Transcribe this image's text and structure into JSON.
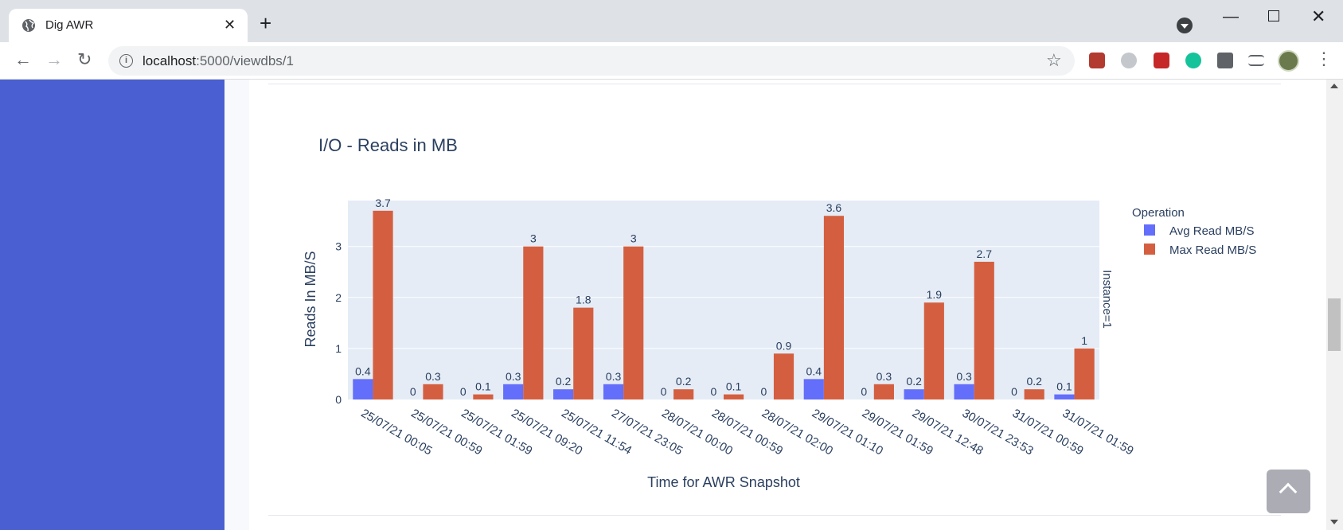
{
  "browser": {
    "tab_title": "Dig AWR",
    "tab_close": "✕",
    "new_tab": "+",
    "url_host": "localhost",
    "url_rest": ":5000/viewdbs/1",
    "back": "←",
    "forward": "→",
    "reload": "↻",
    "star": "☆",
    "minimize": "—",
    "close": "✕",
    "menu": "⋮"
  },
  "icons": {
    "favicon": "globe-icon",
    "info": "info-icon",
    "star": "star-icon",
    "back_to_top": "chevron-up-icon"
  },
  "colors": {
    "sidebar": "#4a5fd2",
    "avg_series": "#636efa",
    "max_series": "#d45f40",
    "plot_bg": "#e5ecf6"
  },
  "chart_data": {
    "type": "bar",
    "title": "I/O - Reads in MB",
    "xlabel": "Time for AWR Snapshot",
    "ylabel": "Reads In MB/S",
    "facet_label": "Instance=1",
    "legend_title": "Operation",
    "legend_position": "right",
    "grid": true,
    "ylim": [
      0,
      3.9
    ],
    "yticks": [
      0,
      1,
      2,
      3
    ],
    "categories": [
      "25/07/21 00:05",
      "25/07/21 00:59",
      "25/07/21 01:59",
      "25/07/21 09:20",
      "25/07/21 11:54",
      "27/07/21 23:05",
      "28/07/21 00:00",
      "28/07/21 00:59",
      "28/07/21 02:00",
      "29/07/21 01:10",
      "29/07/21 01:59",
      "29/07/21 12:48",
      "30/07/21 23:53",
      "31/07/21 00:59",
      "31/07/21 01:59"
    ],
    "series": [
      {
        "name": "Avg Read MB/S",
        "color": "#636efa",
        "values": [
          0.4,
          0,
          0,
          0.3,
          0.2,
          0.3,
          0,
          0,
          0,
          0.4,
          0,
          0.2,
          0.3,
          0,
          0.1
        ]
      },
      {
        "name": "Max Read MB/S",
        "color": "#d45f40",
        "values": [
          3.7,
          0.3,
          0.1,
          3,
          1.8,
          3,
          0.2,
          0.1,
          0.9,
          3.6,
          0.3,
          1.9,
          2.7,
          0.2,
          1
        ]
      }
    ]
  }
}
